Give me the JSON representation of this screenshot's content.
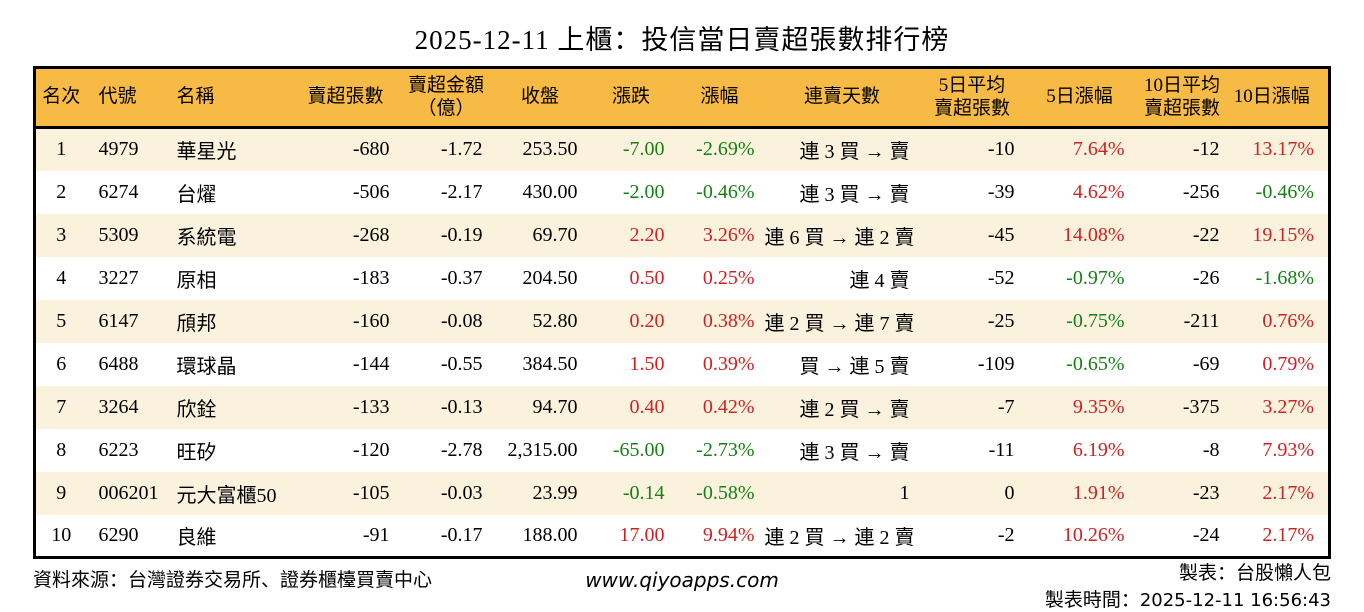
{
  "title": "2025-12-11 上櫃：投信當日賣超張數排行榜",
  "colors": {
    "up_red": "#cd2222",
    "down_green": "#168016",
    "header_bg": "#f7ba44",
    "row_alt_bg": "#fbf2dd",
    "table_border": "#000000"
  },
  "table": {
    "columns": [
      {
        "key": "rank",
        "label": "名次"
      },
      {
        "key": "code",
        "label": "代號"
      },
      {
        "key": "name",
        "label": "名稱"
      },
      {
        "key": "sell_volume",
        "label": "賣超張數"
      },
      {
        "key": "sell_amount",
        "label": "賣超金額\n（億）"
      },
      {
        "key": "close",
        "label": "收盤"
      },
      {
        "key": "change",
        "label": "漲跌"
      },
      {
        "key": "change_pct",
        "label": "漲幅"
      },
      {
        "key": "streak",
        "label": "連賣天數"
      },
      {
        "key": "avg5",
        "label": "5日平均\n賣超張數"
      },
      {
        "key": "pct5",
        "label": "5日漲幅"
      },
      {
        "key": "avg10",
        "label": "10日平均\n賣超張數"
      },
      {
        "key": "pct10",
        "label": "10日漲幅"
      }
    ],
    "rows": [
      [
        {
          "v": "1"
        },
        {
          "v": "4979"
        },
        {
          "v": "華星光"
        },
        {
          "v": "-680"
        },
        {
          "v": "-1.72"
        },
        {
          "v": "253.50"
        },
        {
          "v": "-7.00",
          "c": "down"
        },
        {
          "v": "-2.69%",
          "c": "down"
        },
        {
          "v": "連 3 買 → 賣"
        },
        {
          "v": "-10"
        },
        {
          "v": "7.64%",
          "c": "up"
        },
        {
          "v": "-12"
        },
        {
          "v": "13.17%",
          "c": "up"
        }
      ],
      [
        {
          "v": "2"
        },
        {
          "v": "6274"
        },
        {
          "v": "台燿"
        },
        {
          "v": "-506"
        },
        {
          "v": "-2.17"
        },
        {
          "v": "430.00"
        },
        {
          "v": "-2.00",
          "c": "down"
        },
        {
          "v": "-0.46%",
          "c": "down"
        },
        {
          "v": "連 3 買 → 賣"
        },
        {
          "v": "-39"
        },
        {
          "v": "4.62%",
          "c": "up"
        },
        {
          "v": "-256"
        },
        {
          "v": "-0.46%",
          "c": "down"
        }
      ],
      [
        {
          "v": "3"
        },
        {
          "v": "5309"
        },
        {
          "v": "系統電"
        },
        {
          "v": "-268"
        },
        {
          "v": "-0.19"
        },
        {
          "v": "69.70"
        },
        {
          "v": "2.20",
          "c": "up"
        },
        {
          "v": "3.26%",
          "c": "up"
        },
        {
          "v": "連 6 買 → 連 2 賣"
        },
        {
          "v": "-45"
        },
        {
          "v": "14.08%",
          "c": "up"
        },
        {
          "v": "-22"
        },
        {
          "v": "19.15%",
          "c": "up"
        }
      ],
      [
        {
          "v": "4"
        },
        {
          "v": "3227"
        },
        {
          "v": "原相"
        },
        {
          "v": "-183"
        },
        {
          "v": "-0.37"
        },
        {
          "v": "204.50"
        },
        {
          "v": "0.50",
          "c": "up"
        },
        {
          "v": "0.25%",
          "c": "up"
        },
        {
          "v": "連 4 賣"
        },
        {
          "v": "-52"
        },
        {
          "v": "-0.97%",
          "c": "down"
        },
        {
          "v": "-26"
        },
        {
          "v": "-1.68%",
          "c": "down"
        }
      ],
      [
        {
          "v": "5"
        },
        {
          "v": "6147"
        },
        {
          "v": "頎邦"
        },
        {
          "v": "-160"
        },
        {
          "v": "-0.08"
        },
        {
          "v": "52.80"
        },
        {
          "v": "0.20",
          "c": "up"
        },
        {
          "v": "0.38%",
          "c": "up"
        },
        {
          "v": "連 2 買 → 連 7 賣"
        },
        {
          "v": "-25"
        },
        {
          "v": "-0.75%",
          "c": "down"
        },
        {
          "v": "-211"
        },
        {
          "v": "0.76%",
          "c": "up"
        }
      ],
      [
        {
          "v": "6"
        },
        {
          "v": "6488"
        },
        {
          "v": "環球晶"
        },
        {
          "v": "-144"
        },
        {
          "v": "-0.55"
        },
        {
          "v": "384.50"
        },
        {
          "v": "1.50",
          "c": "up"
        },
        {
          "v": "0.39%",
          "c": "up"
        },
        {
          "v": "買 → 連 5 賣"
        },
        {
          "v": "-109"
        },
        {
          "v": "-0.65%",
          "c": "down"
        },
        {
          "v": "-69"
        },
        {
          "v": "0.79%",
          "c": "up"
        }
      ],
      [
        {
          "v": "7"
        },
        {
          "v": "3264"
        },
        {
          "v": "欣銓"
        },
        {
          "v": "-133"
        },
        {
          "v": "-0.13"
        },
        {
          "v": "94.70"
        },
        {
          "v": "0.40",
          "c": "up"
        },
        {
          "v": "0.42%",
          "c": "up"
        },
        {
          "v": "連 2 買 → 賣"
        },
        {
          "v": "-7"
        },
        {
          "v": "9.35%",
          "c": "up"
        },
        {
          "v": "-375"
        },
        {
          "v": "3.27%",
          "c": "up"
        }
      ],
      [
        {
          "v": "8"
        },
        {
          "v": "6223"
        },
        {
          "v": "旺矽"
        },
        {
          "v": "-120"
        },
        {
          "v": "-2.78"
        },
        {
          "v": "2,315.00"
        },
        {
          "v": "-65.00",
          "c": "down"
        },
        {
          "v": "-2.73%",
          "c": "down"
        },
        {
          "v": "連 3 買 → 賣"
        },
        {
          "v": "-11"
        },
        {
          "v": "6.19%",
          "c": "up"
        },
        {
          "v": "-8"
        },
        {
          "v": "7.93%",
          "c": "up"
        }
      ],
      [
        {
          "v": "9"
        },
        {
          "v": "006201"
        },
        {
          "v": "元大富櫃50"
        },
        {
          "v": "-105"
        },
        {
          "v": "-0.03"
        },
        {
          "v": "23.99"
        },
        {
          "v": "-0.14",
          "c": "down"
        },
        {
          "v": "-0.58%",
          "c": "down"
        },
        {
          "v": "1"
        },
        {
          "v": "0"
        },
        {
          "v": "1.91%",
          "c": "up"
        },
        {
          "v": "-23"
        },
        {
          "v": "2.17%",
          "c": "up"
        }
      ],
      [
        {
          "v": "10"
        },
        {
          "v": "6290"
        },
        {
          "v": "良維"
        },
        {
          "v": "-91"
        },
        {
          "v": "-0.17"
        },
        {
          "v": "188.00"
        },
        {
          "v": "17.00",
          "c": "up"
        },
        {
          "v": "9.94%",
          "c": "up"
        },
        {
          "v": "連 2 買 → 連 2 賣"
        },
        {
          "v": "-2"
        },
        {
          "v": "10.26%",
          "c": "up"
        },
        {
          "v": "-24"
        },
        {
          "v": "2.17%",
          "c": "up"
        }
      ]
    ]
  },
  "footer": {
    "source": "資料來源：台灣證券交易所、證券櫃檯買賣中心",
    "website": "www.qiyoapps.com",
    "maker_label": "製表：台股懶人包",
    "time_label": "製表時間：",
    "time_value": "2025-12-11 16:56:43"
  }
}
